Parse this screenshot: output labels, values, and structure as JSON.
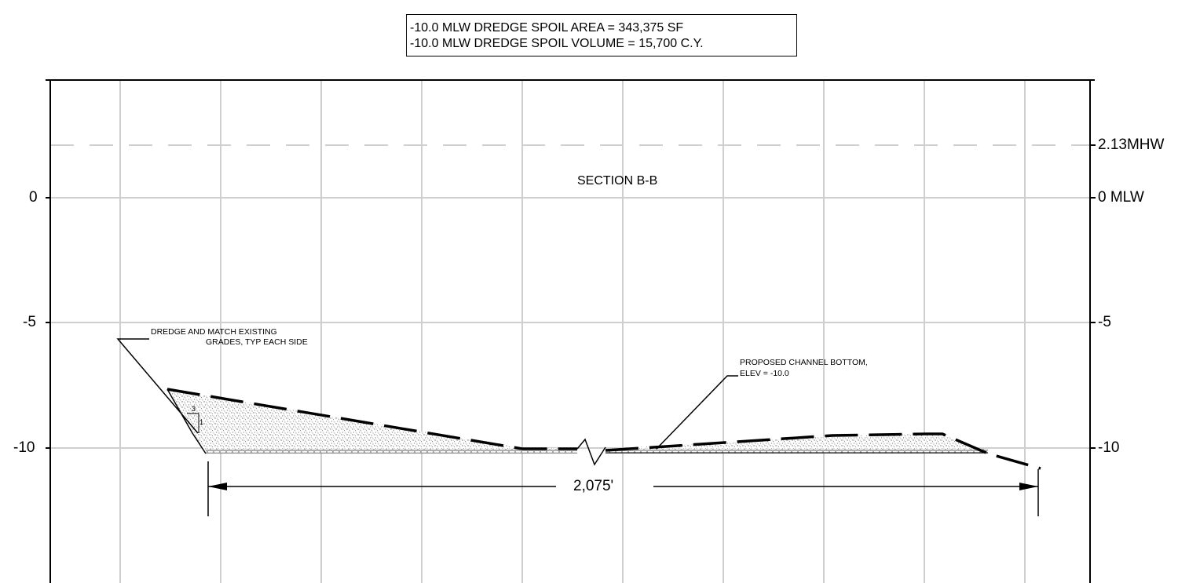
{
  "header": {
    "line1": "-10.0 MLW DREDGE SPOIL AREA = 343,375 SF",
    "line2": "-10.0 MLW DREDGE SPOIL VOLUME = 15,700 C.Y."
  },
  "section_title": "SECTION B-B",
  "left_axis": {
    "labels": [
      "0",
      "-5",
      "-10"
    ]
  },
  "right_axis": {
    "labels": [
      "2.13MHW",
      "0 MLW",
      "-5",
      "-10"
    ]
  },
  "callouts": {
    "existing_grade": {
      "line1": "DREDGE AND MATCH EXISTING",
      "line2": "GRADES, TYP EACH SIDE"
    },
    "channel_bottom": {
      "line1": "PROPOSED CHANNEL BOTTOM,",
      "line2": "ELEV = -10.0"
    }
  },
  "slope": {
    "rise": "1",
    "run": "3"
  },
  "dimension": {
    "label": "2,075'"
  },
  "colors": {
    "grid": "#cfcfcf",
    "ink": "#000000",
    "fill": "#9a9a9a"
  }
}
